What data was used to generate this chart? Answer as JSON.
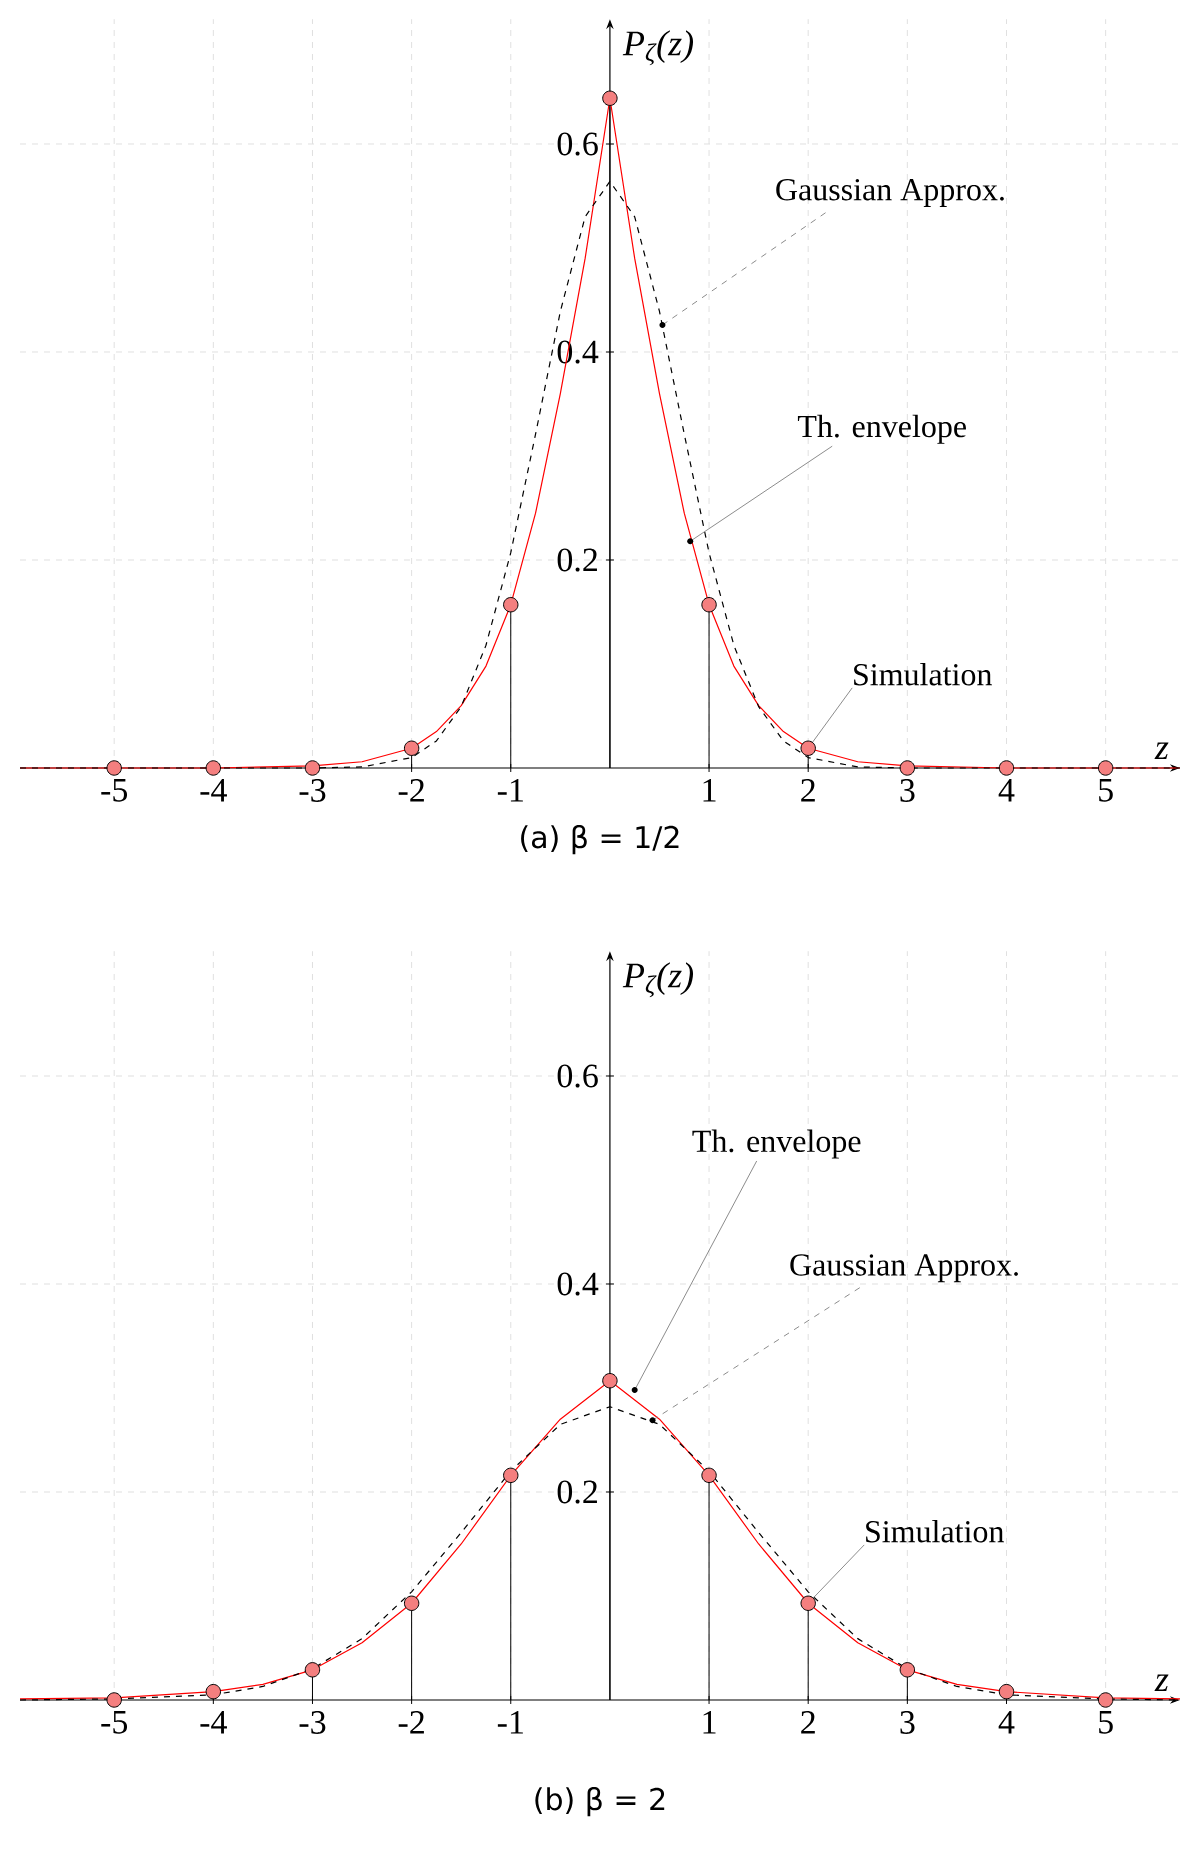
{
  "chart_data": [
    {
      "type": "line",
      "title": "(a) β = 1/2",
      "xlabel": "z",
      "ylabel": "P$_{ζ}$(z)",
      "xlim": [
        -5.95,
        5.75
      ],
      "ylim": [
        0,
        0.72
      ],
      "xticks": [
        -5,
        -4,
        -3,
        -2,
        -1,
        1,
        2,
        3,
        4,
        5
      ],
      "yticks": [
        0.2,
        0.4,
        0.6
      ],
      "grid": true,
      "series": [
        {
          "type": "lollipop",
          "color": "#f47f7f",
          "marker": "circle",
          "x": [
            -5,
            -4,
            -3,
            -2,
            -1,
            0,
            1,
            2,
            3,
            4,
            5
          ],
          "values": [
            0,
            0,
            0,
            0.019,
            0.157,
            0.644,
            0.157,
            0.019,
            0,
            0,
            0
          ]
        },
        {
          "type": "line",
          "color": "#ff0000",
          "line_style": "solid",
          "x": [
            -5.95,
            -4,
            -3,
            -2.5,
            -2,
            -1.75,
            -1.5,
            -1.25,
            -1,
            -0.75,
            -0.5,
            -0.25,
            0,
            0.25,
            0.5,
            0.75,
            1,
            1.25,
            1.5,
            1.75,
            2,
            2.5,
            3,
            4,
            5.75
          ],
          "values": [
            0,
            0,
            0.002,
            0.006,
            0.019,
            0.035,
            0.06,
            0.098,
            0.157,
            0.245,
            0.36,
            0.49,
            0.644,
            0.49,
            0.36,
            0.245,
            0.157,
            0.098,
            0.06,
            0.035,
            0.019,
            0.006,
            0.002,
            0,
            0
          ]
        },
        {
          "type": "line",
          "color": "#000000",
          "line_style": "dashed",
          "x": [
            -5.95,
            -3,
            -2.5,
            -2,
            -1.75,
            -1.5,
            -1.25,
            -1,
            -0.75,
            -0.5,
            -0.25,
            0,
            0.25,
            0.5,
            0.75,
            1,
            1.25,
            1.5,
            1.75,
            2,
            2.5,
            3,
            5.75
          ],
          "values": [
            0,
            0,
            0.001,
            0.01,
            0.026,
            0.059,
            0.118,
            0.207,
            0.321,
            0.439,
            0.53,
            0.564,
            0.53,
            0.439,
            0.321,
            0.207,
            0.118,
            0.059,
            0.026,
            0.01,
            0.001,
            0,
            0
          ]
        }
      ],
      "annotations": [
        {
          "text": "Gaussian Approx.",
          "x": 0.53,
          "y": 0.426
        },
        {
          "text": "Th. envelope",
          "x": 0.81,
          "y": 0.218
        },
        {
          "text": "Simulation",
          "x": 2,
          "y": 0.019
        }
      ]
    },
    {
      "type": "line",
      "title": "(b) β = 2",
      "xlabel": "z",
      "ylabel": "P$_{ζ}$(z)",
      "xlim": [
        -5.95,
        5.75
      ],
      "ylim": [
        0,
        0.72
      ],
      "xticks": [
        -5,
        -4,
        -3,
        -2,
        -1,
        1,
        2,
        3,
        4,
        5
      ],
      "yticks": [
        0.2,
        0.4,
        0.6
      ],
      "grid": true,
      "series": [
        {
          "type": "lollipop",
          "color": "#f47f7f",
          "marker": "circle",
          "x": [
            -5,
            -4,
            -3,
            -2,
            -1,
            0,
            1,
            2,
            3,
            4,
            5
          ],
          "values": [
            0,
            0.008,
            0.029,
            0.093,
            0.216,
            0.307,
            0.216,
            0.093,
            0.029,
            0.008,
            0
          ]
        },
        {
          "type": "line",
          "color": "#ff0000",
          "line_style": "solid",
          "x": [
            -5.95,
            -5,
            -4,
            -3.5,
            -3,
            -2.5,
            -2,
            -1.5,
            -1,
            -0.5,
            0,
            0.5,
            1,
            1.5,
            2,
            2.5,
            3,
            3.5,
            4,
            5,
            5.75
          ],
          "values": [
            0.001,
            0.002,
            0.008,
            0.015,
            0.029,
            0.055,
            0.093,
            0.15,
            0.216,
            0.27,
            0.307,
            0.27,
            0.216,
            0.15,
            0.093,
            0.055,
            0.029,
            0.015,
            0.008,
            0.002,
            0.001
          ]
        },
        {
          "type": "line",
          "color": "#000000",
          "line_style": "dashed",
          "x": [
            -5.95,
            -5,
            -4,
            -3.5,
            -3,
            -2.5,
            -2,
            -1.5,
            -1,
            -0.5,
            0,
            0.5,
            1,
            1.5,
            2,
            2.5,
            3,
            3.5,
            4,
            5,
            5.75
          ],
          "values": [
            0,
            0.001,
            0.005,
            0.013,
            0.03,
            0.059,
            0.104,
            0.161,
            0.22,
            0.265,
            0.282,
            0.265,
            0.22,
            0.161,
            0.104,
            0.059,
            0.03,
            0.013,
            0.005,
            0.001,
            0
          ]
        }
      ],
      "annotations": [
        {
          "text": "Th. envelope",
          "x": 0.25,
          "y": 0.298
        },
        {
          "text": "Gaussian Approx.",
          "x": 0.43,
          "y": 0.269
        },
        {
          "text": "Simulation",
          "x": 2,
          "y": 0.093
        }
      ]
    }
  ]
}
